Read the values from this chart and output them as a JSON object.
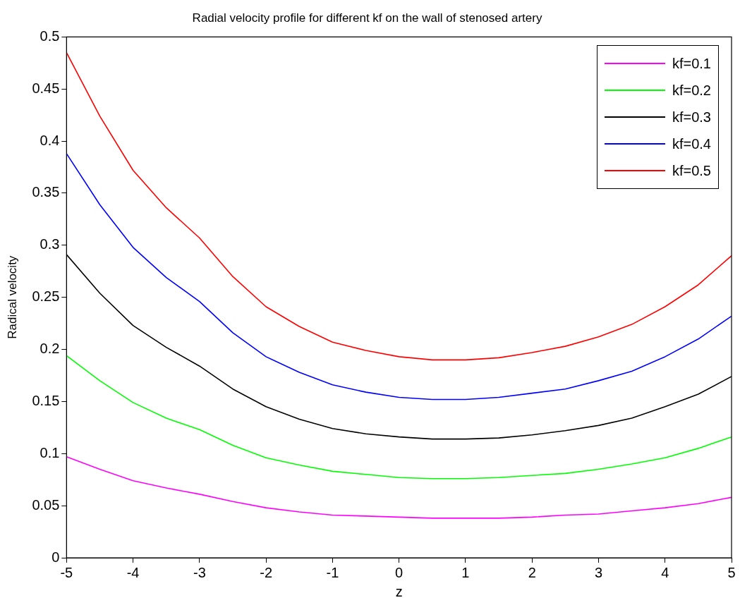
{
  "chart_data": {
    "type": "line",
    "title": "Radial velocity profile for different kf on the wall of stenosed artery",
    "xlabel": "z",
    "ylabel": "Radical velocity",
    "x": [
      -5,
      -4.5,
      -4,
      -3.5,
      -3,
      -2.5,
      -2,
      -1.5,
      -1,
      -0.5,
      0,
      0.5,
      1,
      1.5,
      2,
      2.5,
      3,
      3.5,
      4,
      4.5,
      5
    ],
    "series": [
      {
        "name": "kf=0.1",
        "color": "#ff00ff",
        "values": [
          0.097,
          0.085,
          0.074,
          0.067,
          0.061,
          0.054,
          0.048,
          0.044,
          0.041,
          0.04,
          0.039,
          0.038,
          0.038,
          0.038,
          0.039,
          0.041,
          0.042,
          0.045,
          0.048,
          0.052,
          0.058
        ]
      },
      {
        "name": "kf=0.2",
        "color": "#00ff00",
        "values": [
          0.194,
          0.17,
          0.149,
          0.134,
          0.123,
          0.108,
          0.096,
          0.089,
          0.083,
          0.08,
          0.077,
          0.076,
          0.076,
          0.077,
          0.079,
          0.081,
          0.085,
          0.09,
          0.096,
          0.105,
          0.116
        ]
      },
      {
        "name": "kf=0.3",
        "color": "#000000",
        "values": [
          0.291,
          0.254,
          0.223,
          0.202,
          0.184,
          0.162,
          0.145,
          0.133,
          0.124,
          0.119,
          0.116,
          0.114,
          0.114,
          0.115,
          0.118,
          0.122,
          0.127,
          0.134,
          0.145,
          0.157,
          0.174
        ]
      },
      {
        "name": "kf=0.4",
        "color": "#0000ff",
        "values": [
          0.388,
          0.339,
          0.298,
          0.269,
          0.246,
          0.216,
          0.193,
          0.178,
          0.166,
          0.159,
          0.154,
          0.152,
          0.152,
          0.154,
          0.158,
          0.162,
          0.17,
          0.179,
          0.193,
          0.21,
          0.232
        ]
      },
      {
        "name": "kf=0.5",
        "color": "#ff0000",
        "values": [
          0.485,
          0.424,
          0.372,
          0.336,
          0.307,
          0.27,
          0.241,
          0.222,
          0.207,
          0.199,
          0.193,
          0.19,
          0.19,
          0.192,
          0.197,
          0.203,
          0.212,
          0.224,
          0.241,
          0.262,
          0.29
        ]
      }
    ],
    "xlim": [
      -5,
      5
    ],
    "xticks": [
      -5,
      -4,
      -3,
      -2,
      -1,
      0,
      1,
      2,
      3,
      4,
      5
    ],
    "ylim": [
      0,
      0.5
    ],
    "yticks": [
      0,
      0.05,
      0.1,
      0.15,
      0.2,
      0.25,
      0.3,
      0.35,
      0.4,
      0.45,
      0.5
    ],
    "grid": false,
    "legend": "top right",
    "marker": "none",
    "line_style": "solid"
  }
}
